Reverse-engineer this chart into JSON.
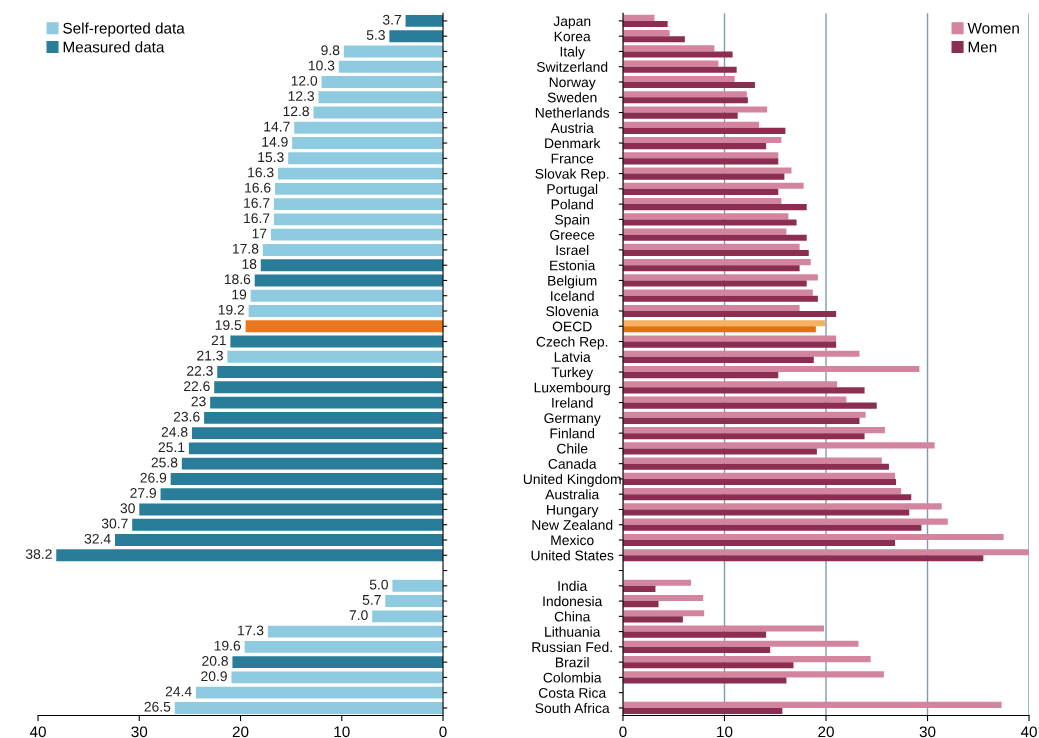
{
  "chart_data": [
    {
      "type": "bar",
      "orientation": "horizontal",
      "stacked": true,
      "legend": "top left",
      "grid": false,
      "categories": [
        "Japan",
        "Korea",
        "Italy",
        "Switzerland",
        "Norway",
        "Sweden",
        "Netherlands",
        "Austria",
        "Denmark",
        "France",
        "Slovak Rep.",
        "Portugal",
        "Poland",
        "Spain",
        "Greece",
        "Israel",
        "Estonia",
        "Belgium",
        "Iceland",
        "Slovenia",
        "OECD",
        "Czech Rep.",
        "Latvia",
        "Turkey",
        "Luxembourg",
        "Ireland",
        "Germany",
        "Finland",
        "Chile",
        "Canada",
        "United Kingdom",
        "Australia",
        "Hungary",
        "New Zealand",
        "Mexico",
        "United States",
        null,
        "India",
        "Indonesia",
        "China",
        "Lithuania",
        "Russian Fed.",
        "Brazil",
        "Colombia",
        "Costa Rica",
        "South Africa"
      ],
      "xlim": [
        40,
        0
      ],
      "xticks": [
        40,
        30,
        20,
        10,
        0
      ],
      "series": [
        {
          "name": "Self-reported data",
          "color": "#8fcbe0",
          "values": [
            null,
            null,
            9.8,
            10.3,
            12.0,
            12.3,
            12.8,
            14.7,
            14.9,
            15.3,
            16.3,
            16.6,
            16.7,
            16.7,
            17,
            17.8,
            null,
            null,
            19,
            19.2,
            null,
            null,
            21.3,
            null,
            null,
            null,
            null,
            null,
            null,
            null,
            null,
            null,
            null,
            null,
            null,
            null,
            null,
            5.0,
            5.7,
            7.0,
            17.3,
            19.6,
            null,
            20.9,
            24.4,
            26.5
          ],
          "value_labels": [
            null,
            null,
            "9.8",
            "10.3",
            "12.0",
            "12.3",
            "12.8",
            "14.7",
            "14.9",
            "15.3",
            "16.3",
            "16.6",
            "16.7",
            "16.7",
            "17",
            "17.8",
            null,
            null,
            "19",
            "19.2",
            null,
            null,
            "21.3",
            null,
            null,
            null,
            null,
            null,
            null,
            null,
            null,
            null,
            null,
            null,
            null,
            null,
            null,
            "5.0",
            "5.7",
            "7.0",
            "17.3",
            "19.6",
            null,
            "20.9",
            "24.4",
            "26.5"
          ]
        },
        {
          "name": "Measured data",
          "color": "#2a7d99",
          "values": [
            3.7,
            5.3,
            null,
            null,
            null,
            null,
            null,
            null,
            null,
            null,
            null,
            null,
            null,
            null,
            null,
            null,
            18,
            18.6,
            null,
            null,
            null,
            21,
            null,
            22.3,
            22.6,
            23,
            23.6,
            24.8,
            25.1,
            25.8,
            26.9,
            27.9,
            30,
            30.7,
            32.4,
            38.2,
            null,
            null,
            null,
            null,
            null,
            null,
            20.8,
            null,
            null,
            null
          ],
          "value_labels": [
            "3.7",
            "5.3",
            null,
            null,
            null,
            null,
            null,
            null,
            null,
            null,
            null,
            null,
            null,
            null,
            null,
            null,
            "18",
            "18.6",
            null,
            null,
            null,
            "21",
            null,
            "22.3",
            "22.6",
            "23",
            "23.6",
            "24.8",
            "25.1",
            "25.8",
            "26.9",
            "27.9",
            "30",
            "30.7",
            "32.4",
            "38.2",
            null,
            null,
            null,
            null,
            null,
            null,
            "20.8",
            null,
            null,
            null
          ]
        },
        {
          "color": "#e8771e",
          "values": [
            null,
            null,
            null,
            null,
            null,
            null,
            null,
            null,
            null,
            null,
            null,
            null,
            null,
            null,
            null,
            null,
            null,
            null,
            null,
            null,
            19.5,
            null,
            null,
            null,
            null,
            null,
            null,
            null,
            null,
            null,
            null,
            null,
            null,
            null,
            null,
            null,
            null,
            null,
            null,
            null,
            null,
            null,
            null,
            null,
            null,
            null
          ],
          "value_labels": [
            null,
            null,
            null,
            null,
            null,
            null,
            null,
            null,
            null,
            null,
            null,
            null,
            null,
            null,
            null,
            null,
            null,
            null,
            null,
            null,
            "19.5",
            null,
            null,
            null,
            null,
            null,
            null,
            null,
            null,
            null,
            null,
            null,
            null,
            null,
            null,
            null,
            null,
            null,
            null,
            null,
            null,
            null,
            null,
            null,
            null,
            null
          ]
        }
      ]
    },
    {
      "type": "bar",
      "orientation": "horizontal",
      "legend": "top right",
      "grid": "x",
      "tick_labels": "x",
      "xlim": [
        0,
        40
      ],
      "xticks": [
        0,
        10,
        20,
        30,
        40
      ],
      "series": [
        {
          "name": "Women",
          "color": "#d3849f",
          "colors": [
            "#d3849f",
            "#d3849f",
            "#d3849f",
            "#d3849f",
            "#d3849f",
            "#d3849f",
            "#d3849f",
            "#d3849f",
            "#d3849f",
            "#d3849f",
            "#d3849f",
            "#d3849f",
            "#d3849f",
            "#d3849f",
            "#d3849f",
            "#d3849f",
            "#d3849f",
            "#d3849f",
            "#d3849f",
            "#d3849f",
            "#f5b060",
            "#d3849f",
            "#d3849f",
            "#d3849f",
            "#d3849f",
            "#d3849f",
            "#d3849f",
            "#d3849f",
            "#d3849f",
            "#d3849f",
            "#d3849f",
            "#d3849f",
            "#d3849f",
            "#d3849f",
            "#d3849f",
            "#d3849f",
            "#d3849f",
            "#d3849f",
            "#d3849f",
            "#d3849f",
            "#d3849f",
            "#d3849f",
            "#d3849f",
            "#d3849f",
            "#d3849f",
            "#d3849f"
          ],
          "values": [
            3.1,
            4.6,
            9.0,
            9.4,
            11.0,
            12.2,
            14.2,
            13.4,
            15.6,
            15.3,
            16.6,
            17.8,
            15.6,
            16.3,
            16.1,
            17.4,
            18.5,
            19.2,
            18.7,
            17.4,
            19.9,
            21.0,
            23.3,
            29.2,
            21.1,
            22.0,
            23.9,
            25.8,
            30.7,
            25.5,
            26.8,
            27.4,
            31.4,
            32.0,
            37.5,
            40.0,
            null,
            6.7,
            7.9,
            8.0,
            19.8,
            23.2,
            24.4,
            25.7,
            null,
            37.3
          ]
        },
        {
          "name": "Men",
          "color": "#8b2e52",
          "colors": [
            "#8b2e52",
            "#8b2e52",
            "#8b2e52",
            "#8b2e52",
            "#8b2e52",
            "#8b2e52",
            "#8b2e52",
            "#8b2e52",
            "#8b2e52",
            "#8b2e52",
            "#8b2e52",
            "#8b2e52",
            "#8b2e52",
            "#8b2e52",
            "#8b2e52",
            "#8b2e52",
            "#8b2e52",
            "#8b2e52",
            "#8b2e52",
            "#8b2e52",
            "#e07012",
            "#8b2e52",
            "#8b2e52",
            "#8b2e52",
            "#8b2e52",
            "#8b2e52",
            "#8b2e52",
            "#8b2e52",
            "#8b2e52",
            "#8b2e52",
            "#8b2e52",
            "#8b2e52",
            "#8b2e52",
            "#8b2e52",
            "#8b2e52",
            "#8b2e52",
            "#8b2e52",
            "#8b2e52",
            "#8b2e52",
            "#8b2e52",
            "#8b2e52",
            "#8b2e52",
            "#8b2e52",
            "#8b2e52",
            "#8b2e52",
            "#8b2e52"
          ],
          "values": [
            4.4,
            6.1,
            10.8,
            11.2,
            13.0,
            12.3,
            11.3,
            16.0,
            14.1,
            15.3,
            15.9,
            15.3,
            18.1,
            17.1,
            18.1,
            18.3,
            17.4,
            18.1,
            19.2,
            21.0,
            19.0,
            21.0,
            18.8,
            15.3,
            23.8,
            25.0,
            23.3,
            23.8,
            19.1,
            26.2,
            26.9,
            28.4,
            28.2,
            29.4,
            26.8,
            35.5,
            null,
            3.2,
            3.5,
            5.9,
            14.1,
            14.5,
            16.8,
            16.1,
            null,
            15.7
          ]
        }
      ]
    }
  ]
}
